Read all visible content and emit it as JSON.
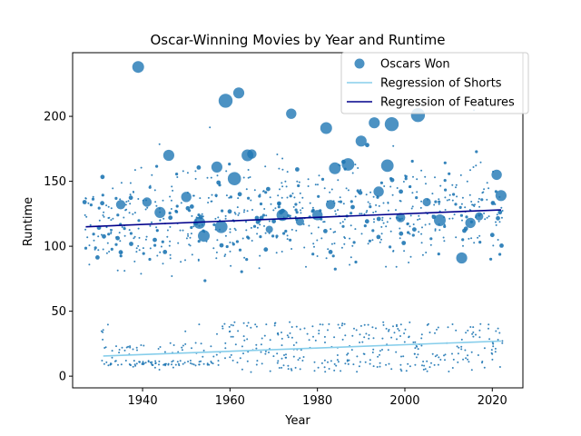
{
  "chart_data": {
    "type": "scatter",
    "title": "Oscar-Winning Movies by Year and Runtime",
    "xlabel": "Year",
    "ylabel": "Runtime",
    "xlim": [
      1924,
      2027
    ],
    "ylim": [
      -9,
      249
    ],
    "xticks": [
      1940,
      1960,
      1980,
      2000,
      2020
    ],
    "yticks": [
      0,
      50,
      100,
      150,
      200
    ],
    "grid": false,
    "legend_position": "top-right",
    "colors": {
      "points": "#1f77b4",
      "shorts_line": "#87ceeb",
      "features_line": "#00008b"
    },
    "legend": [
      {
        "label": "Oscars Won",
        "kind": "marker"
      },
      {
        "label": "Regression of Shorts",
        "kind": "line"
      },
      {
        "label": "Regression of Features",
        "kind": "line"
      }
    ],
    "regression_shorts": {
      "x": [
        1931,
        2022
      ],
      "y": [
        15.5,
        27
      ]
    },
    "regression_features": {
      "x": [
        1927,
        2022
      ],
      "y": [
        115,
        128
      ]
    },
    "large_points": [
      {
        "x": 1939,
        "y": 238,
        "oscars": 8
      },
      {
        "x": 1959,
        "y": 212,
        "oscars": 11
      },
      {
        "x": 1962,
        "y": 218,
        "oscars": 7
      },
      {
        "x": 1961,
        "y": 152,
        "oscars": 10
      },
      {
        "x": 1965,
        "y": 171,
        "oscars": 5
      },
      {
        "x": 1957,
        "y": 161,
        "oscars": 7
      },
      {
        "x": 1946,
        "y": 170,
        "oscars": 7
      },
      {
        "x": 1969,
        "y": 113,
        "oscars": 3
      },
      {
        "x": 1974,
        "y": 202,
        "oscars": 6
      },
      {
        "x": 1982,
        "y": 191,
        "oscars": 8
      },
      {
        "x": 1984,
        "y": 160,
        "oscars": 8
      },
      {
        "x": 1987,
        "y": 163,
        "oscars": 9
      },
      {
        "x": 1993,
        "y": 195,
        "oscars": 7
      },
      {
        "x": 1996,
        "y": 162,
        "oscars": 9
      },
      {
        "x": 1997,
        "y": 194,
        "oscars": 11
      },
      {
        "x": 2003,
        "y": 201,
        "oscars": 11
      },
      {
        "x": 2008,
        "y": 120,
        "oscars": 8
      },
      {
        "x": 2013,
        "y": 91,
        "oscars": 7
      },
      {
        "x": 2022,
        "y": 139,
        "oscars": 7
      },
      {
        "x": 1954,
        "y": 108,
        "oscars": 8
      },
      {
        "x": 1953,
        "y": 118,
        "oscars": 8
      },
      {
        "x": 1958,
        "y": 115,
        "oscars": 9
      },
      {
        "x": 1944,
        "y": 126,
        "oscars": 7
      },
      {
        "x": 1941,
        "y": 134,
        "oscars": 5
      },
      {
        "x": 1950,
        "y": 138,
        "oscars": 6
      },
      {
        "x": 1972,
        "y": 124,
        "oscars": 8
      },
      {
        "x": 1980,
        "y": 124,
        "oscars": 6
      },
      {
        "x": 2021,
        "y": 155,
        "oscars": 6
      },
      {
        "x": 1935,
        "y": 132,
        "oscars": 5
      },
      {
        "x": 1990,
        "y": 181,
        "oscars": 7
      },
      {
        "x": 1999,
        "y": 122,
        "oscars": 5
      },
      {
        "x": 2017,
        "y": 123,
        "oscars": 4
      },
      {
        "x": 2015,
        "y": 118,
        "oscars": 6
      },
      {
        "x": 1976,
        "y": 119,
        "oscars": 4
      },
      {
        "x": 1964,
        "y": 170,
        "oscars": 8
      },
      {
        "x": 1983,
        "y": 132,
        "oscars": 5
      },
      {
        "x": 1994,
        "y": 142,
        "oscars": 6
      },
      {
        "x": 2005,
        "y": 134,
        "oscars": 4
      }
    ],
    "features_cloud": {
      "x_range": [
        1927,
        2022
      ],
      "y_center": "on regression",
      "y_spread": 24,
      "min_y": 60,
      "max_y": 222
    },
    "shorts_cloud": {
      "x_range": [
        1931,
        2022
      ],
      "y_range": [
        3,
        42
      ]
    }
  }
}
